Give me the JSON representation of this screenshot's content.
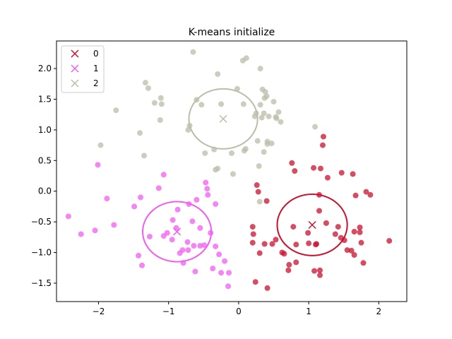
{
  "chart_data": {
    "type": "scatter",
    "title": "K-means initialize",
    "xlabel": "",
    "ylabel": "",
    "xlim": [
      -2.6,
      2.4
    ],
    "ylim": [
      -1.8,
      2.45
    ],
    "xticks": [
      -2,
      -1,
      0,
      1,
      2
    ],
    "yticks": [
      -1.5,
      -1.0,
      -0.5,
      0.0,
      0.5,
      1.0,
      1.5,
      2.0
    ],
    "xtick_labels": [
      "−2",
      "−1",
      "0",
      "1",
      "2"
    ],
    "ytick_labels": [
      "−1.5",
      "−1.0",
      "−0.5",
      "0.0",
      "0.5",
      "1.0",
      "1.5",
      "2.0"
    ],
    "grid": false,
    "legend_position": "top-left",
    "series": [
      {
        "name": "0",
        "color": "#c8102e",
        "center": [
          1.05,
          -0.55
        ],
        "radius_x": 0.5,
        "radius_y": 0.5,
        "points": [
          [
            1.11,
            -0.86
          ],
          [
            0.71,
            -1.29
          ],
          [
            0.78,
            -0.58
          ],
          [
            1.17,
            0.37
          ],
          [
            1.63,
            0.28
          ],
          [
            0.37,
            -0.86
          ],
          [
            0.4,
            -0.16
          ],
          [
            0.76,
            0.46
          ],
          [
            0.8,
            0.33
          ],
          [
            1.07,
            0.38
          ],
          [
            1.2,
            0.75
          ],
          [
            1.21,
            0.89
          ],
          [
            1.27,
            0.22
          ],
          [
            1.47,
            0.3
          ],
          [
            1.82,
            -0.01
          ],
          [
            1.88,
            -0.06
          ],
          [
            1.67,
            -0.07
          ],
          [
            0.99,
            -0.68
          ],
          [
            1.15,
            -0.06
          ],
          [
            1.15,
            -0.32
          ],
          [
            1.1,
            -0.87
          ],
          [
            1.25,
            -0.52
          ],
          [
            1.42,
            -0.58
          ],
          [
            1.38,
            -0.7
          ],
          [
            1.46,
            -0.76
          ],
          [
            1.51,
            -0.8
          ],
          [
            1.55,
            -0.96
          ],
          [
            1.61,
            -0.97
          ],
          [
            1.65,
            -1.04
          ],
          [
            1.65,
            -0.66
          ],
          [
            1.73,
            -0.59
          ],
          [
            1.73,
            -0.67
          ],
          [
            1.75,
            -0.84
          ],
          [
            1.78,
            -1.17
          ],
          [
            2.15,
            -0.81
          ],
          [
            0.2,
            -0.58
          ],
          [
            0.21,
            -0.7
          ],
          [
            0.2,
            -0.84
          ],
          [
            0.24,
            -1.48
          ],
          [
            0.26,
            0.1
          ],
          [
            0.28,
            -0.01
          ],
          [
            0.41,
            -1.58
          ],
          [
            0.48,
            -0.86
          ],
          [
            0.53,
            -0.79
          ],
          [
            0.62,
            -1.0
          ],
          [
            0.65,
            -1.02
          ],
          [
            0.72,
            -1.2
          ],
          [
            0.82,
            -1.16
          ],
          [
            0.82,
            -0.87
          ],
          [
            1.0,
            -0.85
          ],
          [
            1.08,
            -1.3
          ],
          [
            1.16,
            -1.29
          ],
          [
            1.16,
            -1.37
          ],
          [
            0.3,
            -1.01
          ]
        ]
      },
      {
        "name": "1",
        "color": "#f05cf0",
        "center": [
          -0.88,
          -0.66
        ],
        "radius_x": 0.49,
        "radius_y": 0.49,
        "points": [
          [
            -2.43,
            -0.41
          ],
          [
            -2.25,
            -0.7
          ],
          [
            -2.05,
            -0.64
          ],
          [
            -2.01,
            0.43
          ],
          [
            -1.88,
            -0.12
          ],
          [
            -1.78,
            -0.55
          ],
          [
            -1.49,
            -0.25
          ],
          [
            -1.4,
            -0.1
          ],
          [
            -1.38,
            -1.21
          ],
          [
            -1.27,
            -0.74
          ],
          [
            -1.14,
            0.05
          ],
          [
            -1.07,
            0.27
          ],
          [
            -1.07,
            -0.73
          ],
          [
            -1.02,
            -0.68
          ],
          [
            -0.95,
            -0.79
          ],
          [
            -0.94,
            -0.47
          ],
          [
            -0.89,
            -0.6
          ],
          [
            -0.87,
            -0.3
          ],
          [
            -0.84,
            -1.01
          ],
          [
            -0.8,
            -0.96
          ],
          [
            -0.79,
            -1.17
          ],
          [
            -0.73,
            -0.83
          ],
          [
            -0.72,
            -0.96
          ],
          [
            -0.71,
            -0.21
          ],
          [
            -0.66,
            -0.49
          ],
          [
            -0.64,
            -0.89
          ],
          [
            -0.62,
            -1.31
          ],
          [
            -0.6,
            -0.14
          ],
          [
            -0.55,
            -0.6
          ],
          [
            -0.55,
            -0.89
          ],
          [
            -0.49,
            -0.88
          ],
          [
            -0.47,
            0.14
          ],
          [
            -0.45,
            0.04
          ],
          [
            -0.44,
            -0.06
          ],
          [
            -0.4,
            -0.68
          ],
          [
            -0.37,
            -1.26
          ],
          [
            -0.33,
            -0.21
          ],
          [
            -0.33,
            -0.9
          ],
          [
            -0.28,
            -1.03
          ],
          [
            -0.25,
            -1.33
          ],
          [
            -0.2,
            -1.14
          ],
          [
            -0.15,
            -1.55
          ],
          [
            -0.14,
            -1.33
          ],
          [
            -1.43,
            -1.05
          ]
        ]
      },
      {
        "name": "2",
        "color": "#bcbcaa",
        "center": [
          -0.22,
          1.18
        ],
        "radius_x": 0.49,
        "radius_y": 0.49,
        "points": [
          [
            -0.65,
            2.27
          ],
          [
            -0.3,
            1.91
          ],
          [
            0.06,
            2.13
          ],
          [
            0.11,
            2.17
          ],
          [
            0.31,
            2.0
          ],
          [
            -1.33,
            1.77
          ],
          [
            -1.29,
            1.68
          ],
          [
            -1.2,
            1.44
          ],
          [
            -1.11,
            1.52
          ],
          [
            -1.1,
            1.42
          ],
          [
            -1.12,
            1.16
          ],
          [
            -1.75,
            1.32
          ],
          [
            -1.97,
            0.75
          ],
          [
            -1.41,
            0.95
          ],
          [
            -1.35,
            0.58
          ],
          [
            -0.6,
            1.49
          ],
          [
            -0.53,
            1.41
          ],
          [
            -0.7,
            1.07
          ],
          [
            -0.72,
            1.0
          ],
          [
            -0.48,
            0.62
          ],
          [
            -0.35,
            0.68
          ],
          [
            -0.33,
            0.35
          ],
          [
            -0.3,
            0.37
          ],
          [
            -0.25,
            1.42
          ],
          [
            -0.1,
            0.62
          ],
          [
            -0.08,
            0.28
          ],
          [
            -0.02,
            1.67
          ],
          [
            0.07,
            1.42
          ],
          [
            0.08,
            0.66
          ],
          [
            0.1,
            0.69
          ],
          [
            0.23,
            1.22
          ],
          [
            0.27,
            0.82
          ],
          [
            0.31,
            1.41
          ],
          [
            0.34,
            1.66
          ],
          [
            0.33,
            1.2
          ],
          [
            0.36,
            0.64
          ],
          [
            0.37,
            1.52
          ],
          [
            0.36,
            1.27
          ],
          [
            0.38,
            1.62
          ],
          [
            0.4,
            1.55
          ],
          [
            0.41,
            0.81
          ],
          [
            0.43,
            1.22
          ],
          [
            0.47,
            0.78
          ],
          [
            0.5,
            1.46
          ],
          [
            0.53,
            1.21
          ],
          [
            0.54,
            1.19
          ],
          [
            0.57,
            1.29
          ],
          [
            0.6,
            1.13
          ],
          [
            0.29,
            0.41
          ],
          [
            0.3,
            -0.17
          ],
          [
            1.09,
            1.05
          ],
          [
            0.25,
            1.27
          ],
          [
            0.41,
            0.77
          ]
        ]
      }
    ]
  }
}
